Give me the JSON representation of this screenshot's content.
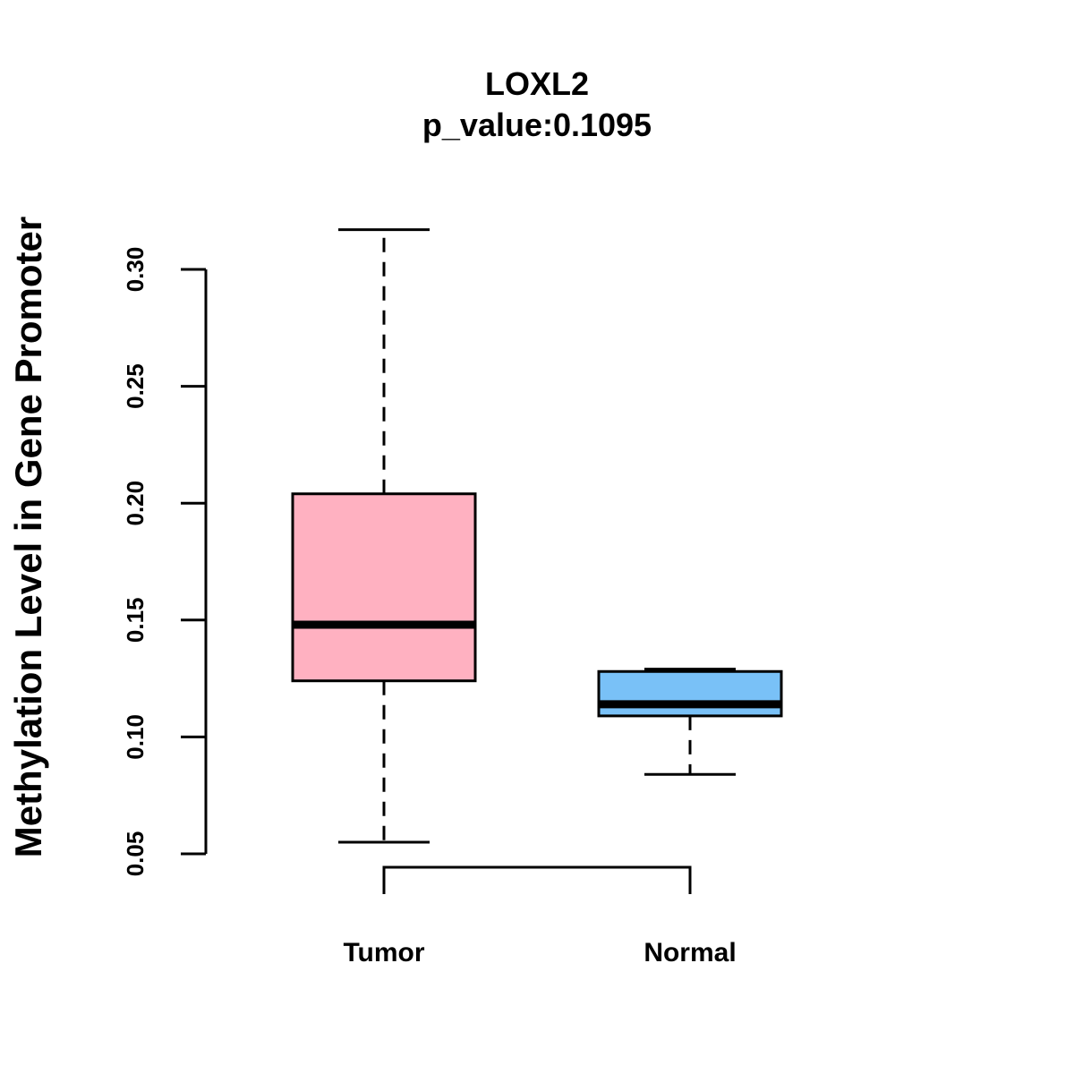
{
  "chart_data": {
    "type": "boxplot",
    "title": "LOXL2",
    "subtitle": "p_value:0.1095",
    "ylabel": "Methylation Level in Gene Promoter",
    "xlabel": "",
    "ylim": [
      0.05,
      0.3
    ],
    "yticks": [
      0.05,
      0.1,
      0.15,
      0.2,
      0.25,
      0.3
    ],
    "ytick_labels": [
      "0.05",
      "0.10",
      "0.15",
      "0.20",
      "0.25",
      "0.30"
    ],
    "categories": [
      "Tumor",
      "Normal"
    ],
    "series": [
      {
        "name": "Tumor",
        "color": "#FFB1C1",
        "whisker_low": 0.055,
        "q1": 0.124,
        "median": 0.148,
        "q3": 0.204,
        "whisker_high": 0.317
      },
      {
        "name": "Normal",
        "color": "#79C1F7",
        "whisker_low": 0.084,
        "q1": 0.109,
        "median": 0.114,
        "q3": 0.128,
        "whisker_high": 0.129
      }
    ],
    "comparison_bracket": [
      "Tumor",
      "Normal"
    ],
    "grid": false
  }
}
